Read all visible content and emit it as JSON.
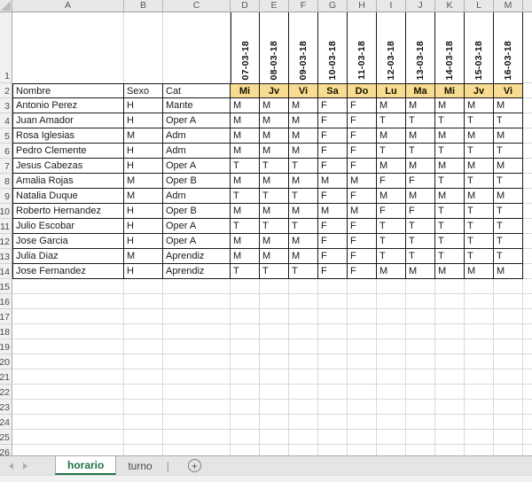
{
  "sheet": {
    "column_headers": [
      "A",
      "B",
      "C",
      "D",
      "E",
      "F",
      "G",
      "H",
      "I",
      "J",
      "K",
      "L",
      "M"
    ],
    "row_numbers": [
      "1",
      "2",
      "3",
      "4",
      "5",
      "6",
      "7",
      "8",
      "9",
      "10",
      "11",
      "12",
      "13",
      "14",
      "15",
      "16",
      "17",
      "18",
      "19",
      "20",
      "21",
      "22",
      "23",
      "24",
      "25",
      "26"
    ],
    "dates": [
      "07-03-18",
      "08-03-18",
      "09-03-18",
      "10-03-18",
      "11-03-18",
      "12-03-18",
      "13-03-18",
      "14-03-18",
      "15-03-18",
      "16-03-18"
    ],
    "header_row": {
      "nombre": "Nombre",
      "sexo": "Sexo",
      "cat": "Cat"
    },
    "day_row": [
      "Mi",
      "Jv",
      "Vi",
      "Sa",
      "Do",
      "Lu",
      "Ma",
      "Mi",
      "Jv",
      "Vi"
    ],
    "rows": [
      {
        "row": "3",
        "nombre": "Antonio Perez",
        "sexo": "H",
        "cat": "Mante",
        "values": [
          "M",
          "M",
          "M",
          "F",
          "F",
          "M",
          "M",
          "M",
          "M",
          "M"
        ]
      },
      {
        "row": "4",
        "nombre": "Juan Amador",
        "sexo": "H",
        "cat": "Oper A",
        "values": [
          "M",
          "M",
          "M",
          "F",
          "F",
          "T",
          "T",
          "T",
          "T",
          "T"
        ]
      },
      {
        "row": "5",
        "nombre": "Rosa Iglesias",
        "sexo": "M",
        "cat": "Adm",
        "values": [
          "M",
          "M",
          "M",
          "F",
          "F",
          "M",
          "M",
          "M",
          "M",
          "M"
        ]
      },
      {
        "row": "6",
        "nombre": "Pedro Clemente",
        "sexo": "H",
        "cat": "Adm",
        "values": [
          "M",
          "M",
          "M",
          "F",
          "F",
          "T",
          "T",
          "T",
          "T",
          "T"
        ]
      },
      {
        "row": "7",
        "nombre": "Jesus Cabezas",
        "sexo": "H",
        "cat": "Oper A",
        "values": [
          "T",
          "T",
          "T",
          "F",
          "F",
          "M",
          "M",
          "M",
          "M",
          "M"
        ]
      },
      {
        "row": "8",
        "nombre": "Amalia Rojas",
        "sexo": "M",
        "cat": "Oper B",
        "values": [
          "M",
          "M",
          "M",
          "M",
          "M",
          "F",
          "F",
          "T",
          "T",
          "T"
        ]
      },
      {
        "row": "9",
        "nombre": "Natalia Duque",
        "sexo": "M",
        "cat": "Adm",
        "values": [
          "T",
          "T",
          "T",
          "F",
          "F",
          "M",
          "M",
          "M",
          "M",
          "M"
        ]
      },
      {
        "row": "10",
        "nombre": "Roberto Hernandez",
        "sexo": "H",
        "cat": "Oper B",
        "values": [
          "M",
          "M",
          "M",
          "M",
          "M",
          "F",
          "F",
          "T",
          "T",
          "T"
        ]
      },
      {
        "row": "11",
        "nombre": "Julio Escobar",
        "sexo": "H",
        "cat": "Oper A",
        "values": [
          "T",
          "T",
          "T",
          "F",
          "F",
          "T",
          "T",
          "T",
          "T",
          "T"
        ]
      },
      {
        "row": "12",
        "nombre": "Jose Garcia",
        "sexo": "H",
        "cat": "Oper A",
        "values": [
          "M",
          "M",
          "M",
          "F",
          "F",
          "T",
          "T",
          "T",
          "T",
          "T"
        ]
      },
      {
        "row": "13",
        "nombre": "Julia Diaz",
        "sexo": "M",
        "cat": "Aprendiz",
        "values": [
          "M",
          "M",
          "M",
          "F",
          "F",
          "T",
          "T",
          "T",
          "T",
          "T"
        ]
      },
      {
        "row": "14",
        "nombre": "Jose Fernandez",
        "sexo": "H",
        "cat": "Aprendiz",
        "values": [
          "T",
          "T",
          "T",
          "F",
          "F",
          "M",
          "M",
          "M",
          "M",
          "M"
        ]
      }
    ],
    "empty_rows": [
      "15",
      "16",
      "17",
      "18",
      "19",
      "20",
      "21",
      "22",
      "23",
      "24",
      "25",
      "26"
    ],
    "tabs": {
      "active": "horario",
      "inactive": "turno",
      "add_label": "+"
    },
    "colors": {
      "day_header_fill": "#F8DC91",
      "active_tab_green": "#217346",
      "header_bg": "#E8E8E8",
      "gridline": "#D9D9D9",
      "table_border": "#1a1a1a"
    }
  }
}
